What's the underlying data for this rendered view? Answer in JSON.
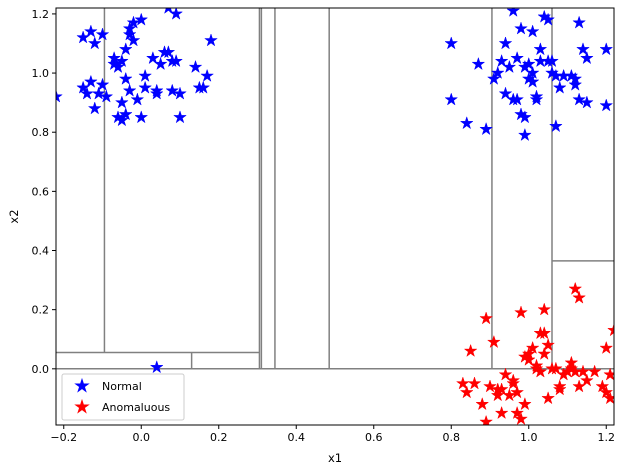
{
  "chart_data": {
    "type": "scatter",
    "xlabel": "x1",
    "ylabel": "x2",
    "xlim": [
      -0.22,
      1.22
    ],
    "ylim": [
      -0.19,
      1.22
    ],
    "xticks": [
      -0.2,
      0.0,
      0.2,
      0.4,
      0.6,
      0.8,
      1.0,
      1.2
    ],
    "xtick_labels": [
      "−0.2",
      "0.0",
      "0.2",
      "0.4",
      "0.6",
      "0.8",
      "1.0",
      "1.2"
    ],
    "yticks": [
      0.0,
      0.2,
      0.4,
      0.6,
      0.8,
      1.0,
      1.2
    ],
    "ytick_labels": [
      "0.0",
      "0.2",
      "0.4",
      "0.6",
      "0.8",
      "1.0",
      "1.2"
    ],
    "grid": false,
    "legend": {
      "placement": "lower-left",
      "entries": [
        "Normal",
        "Anomaluous"
      ]
    },
    "partition_lines": {
      "color": "#808080",
      "vertical": [
        {
          "x": -0.095,
          "y0": 0.055,
          "y1": 1.22
        },
        {
          "x": 0.13,
          "y0": 0.0,
          "y1": 0.055
        },
        {
          "x": 0.305,
          "y0": 0.0,
          "y1": 1.22
        },
        {
          "x": 0.31,
          "y0": 0.0,
          "y1": 1.22
        },
        {
          "x": 0.345,
          "y0": 0.0,
          "y1": 1.22
        },
        {
          "x": 0.485,
          "y0": 0.0,
          "y1": 1.22
        },
        {
          "x": 0.905,
          "y0": 0.0,
          "y1": 1.22
        },
        {
          "x": 1.06,
          "y0": 0.0,
          "y1": 1.22
        }
      ],
      "horizontal": [
        {
          "y": 0.0,
          "x0": -0.22,
          "x1": 1.22
        },
        {
          "y": 0.055,
          "x0": -0.22,
          "x1": 0.305
        },
        {
          "y": 0.365,
          "x0": 1.06,
          "x1": 1.22
        }
      ]
    },
    "series": [
      {
        "name": "Normal",
        "color": "#0000ff",
        "marker": "star",
        "points": [
          [
            -0.22,
            0.92
          ],
          [
            0.04,
            0.005
          ],
          [
            -0.15,
            1.12
          ],
          [
            -0.13,
            1.14
          ],
          [
            -0.12,
            1.1
          ],
          [
            -0.1,
            1.13
          ],
          [
            -0.14,
            0.93
          ],
          [
            -0.15,
            0.95
          ],
          [
            -0.12,
            0.88
          ],
          [
            -0.11,
            0.93
          ],
          [
            -0.1,
            0.96
          ],
          [
            -0.13,
            0.97
          ],
          [
            -0.07,
            1.03
          ],
          [
            -0.05,
            1.04
          ],
          [
            -0.06,
            1.02
          ],
          [
            -0.07,
            1.05
          ],
          [
            -0.04,
            1.08
          ],
          [
            -0.03,
            1.13
          ],
          [
            -0.03,
            1.15
          ],
          [
            -0.02,
            1.17
          ],
          [
            0.0,
            1.18
          ],
          [
            -0.02,
            1.11
          ],
          [
            -0.05,
            0.9
          ],
          [
            -0.06,
            0.85
          ],
          [
            -0.05,
            0.84
          ],
          [
            -0.04,
            0.86
          ],
          [
            -0.03,
            0.94
          ],
          [
            -0.01,
            0.91
          ],
          [
            0.0,
            0.85
          ],
          [
            0.01,
            0.95
          ],
          [
            0.01,
            0.99
          ],
          [
            0.04,
            0.93
          ],
          [
            0.04,
            0.94
          ],
          [
            0.05,
            1.03
          ],
          [
            0.03,
            1.05
          ],
          [
            0.06,
            1.07
          ],
          [
            0.08,
            1.04
          ],
          [
            0.09,
            1.04
          ],
          [
            0.07,
            1.07
          ],
          [
            0.08,
            0.94
          ],
          [
            0.1,
            0.93
          ],
          [
            0.09,
            1.2
          ],
          [
            0.07,
            1.22
          ],
          [
            0.1,
            0.85
          ],
          [
            0.14,
            1.02
          ],
          [
            0.15,
            0.95
          ],
          [
            0.16,
            0.95
          ],
          [
            0.17,
            0.99
          ],
          [
            0.18,
            1.11
          ],
          [
            -0.04,
            0.98
          ],
          [
            -0.09,
            0.92
          ],
          [
            0.8,
            1.1
          ],
          [
            0.8,
            0.91
          ],
          [
            0.84,
            0.83
          ],
          [
            0.87,
            1.03
          ],
          [
            0.89,
            0.81
          ],
          [
            0.91,
            0.98
          ],
          [
            0.93,
            1.04
          ],
          [
            0.94,
            0.93
          ],
          [
            0.94,
            1.1
          ],
          [
            0.95,
            1.02
          ],
          [
            0.96,
            1.21
          ],
          [
            0.96,
            0.91
          ],
          [
            0.97,
            1.05
          ],
          [
            0.97,
            0.91
          ],
          [
            0.98,
            1.15
          ],
          [
            0.98,
            0.86
          ],
          [
            0.99,
            1.02
          ],
          [
            0.99,
            0.79
          ],
          [
            1.0,
            1.03
          ],
          [
            1.0,
            0.98
          ],
          [
            1.01,
            1.14
          ],
          [
            1.01,
            0.97
          ],
          [
            1.02,
            0.92
          ],
          [
            1.02,
            0.91
          ],
          [
            1.03,
            1.04
          ],
          [
            1.03,
            1.08
          ],
          [
            1.04,
            1.19
          ],
          [
            1.05,
            1.18
          ],
          [
            1.05,
            1.04
          ],
          [
            1.06,
            1.04
          ],
          [
            1.06,
            1.0
          ],
          [
            1.07,
            0.99
          ],
          [
            1.07,
            0.82
          ],
          [
            1.08,
            0.95
          ],
          [
            1.09,
            0.99
          ],
          [
            1.11,
            0.99
          ],
          [
            1.12,
            0.98
          ],
          [
            1.12,
            0.96
          ],
          [
            1.13,
            1.17
          ],
          [
            1.13,
            0.91
          ],
          [
            1.14,
            1.08
          ],
          [
            1.15,
            1.05
          ],
          [
            1.15,
            0.9
          ],
          [
            1.2,
            1.08
          ],
          [
            1.2,
            0.89
          ],
          [
            0.99,
            0.85
          ],
          [
            1.01,
            1.0
          ],
          [
            0.92,
            1.0
          ]
        ]
      },
      {
        "name": "Anomaluous",
        "color": "#ff0000",
        "marker": "star",
        "points": [
          [
            0.83,
            -0.05
          ],
          [
            0.84,
            -0.08
          ],
          [
            0.85,
            0.06
          ],
          [
            0.86,
            -0.05
          ],
          [
            0.88,
            -0.12
          ],
          [
            0.89,
            -0.18
          ],
          [
            0.89,
            0.17
          ],
          [
            0.9,
            -0.06
          ],
          [
            0.91,
            0.09
          ],
          [
            0.92,
            -0.07
          ],
          [
            0.92,
            -0.09
          ],
          [
            0.93,
            -0.15
          ],
          [
            0.93,
            -0.07
          ],
          [
            0.94,
            -0.02
          ],
          [
            0.95,
            -0.09
          ],
          [
            0.96,
            -0.04
          ],
          [
            0.96,
            -0.05
          ],
          [
            0.97,
            -0.08
          ],
          [
            0.97,
            -0.15
          ],
          [
            0.98,
            -0.17
          ],
          [
            0.98,
            0.19
          ],
          [
            0.99,
            -0.12
          ],
          [
            0.99,
            0.04
          ],
          [
            1.0,
            0.05
          ],
          [
            1.0,
            0.03
          ],
          [
            1.01,
            0.07
          ],
          [
            1.02,
            0.0
          ],
          [
            1.02,
            0.01
          ],
          [
            1.03,
            -0.01
          ],
          [
            1.03,
            0.12
          ],
          [
            1.04,
            0.2
          ],
          [
            1.04,
            0.12
          ],
          [
            1.04,
            0.05
          ],
          [
            1.05,
            0.08
          ],
          [
            1.05,
            -0.1
          ],
          [
            1.06,
            0.0
          ],
          [
            1.07,
            0.0
          ],
          [
            1.08,
            -0.07
          ],
          [
            1.08,
            -0.06
          ],
          [
            1.09,
            -0.02
          ],
          [
            1.1,
            -0.01
          ],
          [
            1.11,
            0.02
          ],
          [
            1.11,
            0.0
          ],
          [
            1.12,
            -0.01
          ],
          [
            1.12,
            0.27
          ],
          [
            1.13,
            0.24
          ],
          [
            1.13,
            -0.06
          ],
          [
            1.14,
            -0.01
          ],
          [
            1.15,
            -0.04
          ],
          [
            1.17,
            -0.01
          ],
          [
            1.19,
            -0.06
          ],
          [
            1.2,
            0.07
          ],
          [
            1.2,
            -0.08
          ],
          [
            1.21,
            -0.02
          ],
          [
            1.21,
            -0.1
          ],
          [
            1.22,
            0.13
          ]
        ]
      }
    ]
  }
}
